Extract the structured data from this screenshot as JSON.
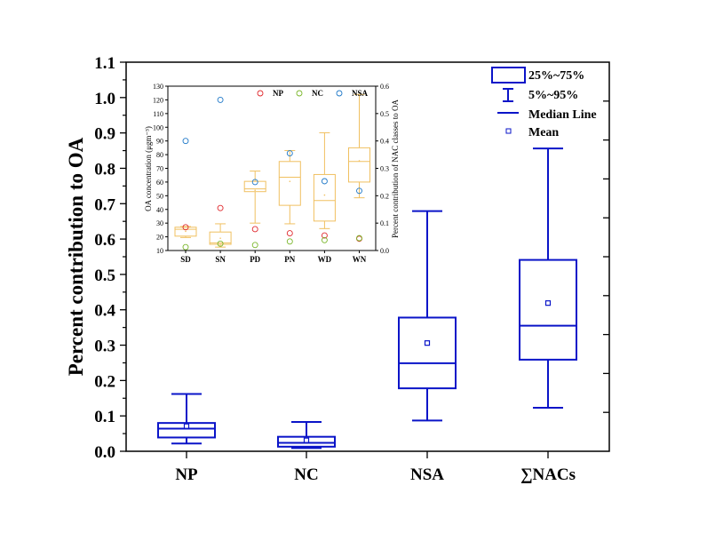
{
  "chart_data": [
    {
      "type": "box",
      "ylabel": "Percent contribution to OA",
      "ylim": [
        0,
        1.1
      ],
      "yticks": [
        "0.0",
        "0.1",
        "0.2",
        "0.3",
        "0.4",
        "0.5",
        "0.6",
        "0.7",
        "0.8",
        "0.9",
        "1.0",
        "1.1"
      ],
      "categories": [
        "NP",
        "NC",
        "NSA",
        "∑NACs"
      ],
      "series": [
        {
          "category": "NP",
          "p5": 0.022,
          "p25": 0.039,
          "median": 0.064,
          "p75": 0.08,
          "p95": 0.162,
          "mean": 0.071
        },
        {
          "category": "NC",
          "p5": 0.009,
          "p25": 0.013,
          "median": 0.024,
          "p75": 0.041,
          "p95": 0.083,
          "mean": 0.031
        },
        {
          "category": "NSA",
          "p5": 0.087,
          "p25": 0.178,
          "median": 0.249,
          "p75": 0.378,
          "p95": 0.679,
          "mean": 0.306
        },
        {
          "category": "∑NACs",
          "p5": 0.123,
          "p25": 0.259,
          "median": 0.355,
          "p75": 0.541,
          "p95": 0.856,
          "mean": 0.419
        }
      ],
      "legend": {
        "position": "top-right",
        "items": [
          "25%~75%",
          "5%~95%",
          "Median Line",
          "Mean"
        ]
      },
      "color": "#0a14c8"
    },
    {
      "type": "box+scatter",
      "inset": true,
      "ylabel": "OA concentration (μgm⁻³)",
      "ylabel_right": "Percent contribution of NAC classes to OA",
      "ylim": [
        10,
        130
      ],
      "ylim_right": [
        0,
        0.6
      ],
      "yticks": [
        "10",
        "20",
        "30",
        "40",
        "50",
        "60",
        "70",
        "80",
        "90",
        "100",
        "110",
        "120",
        "130"
      ],
      "yticks_right": [
        "0.0",
        "0.1",
        "0.2",
        "0.3",
        "0.4",
        "0.5",
        "0.6"
      ],
      "categories": [
        "SD",
        "SN",
        "PD",
        "PN",
        "WD",
        "WN"
      ],
      "boxes": [
        {
          "category": "SD",
          "p5": 19.5,
          "p25": 20.5,
          "median": 25.5,
          "p75": 27,
          "p95": 27.5,
          "mean": 24
        },
        {
          "category": "SN",
          "p5": 12.5,
          "p25": 14.5,
          "median": 15.5,
          "p75": 23.5,
          "p95": 29.5,
          "mean": 19
        },
        {
          "category": "PD",
          "p5": 30,
          "p25": 53,
          "median": 55,
          "p75": 60.5,
          "p95": 68,
          "mean": 54
        },
        {
          "category": "PN",
          "p5": 29.5,
          "p25": 43,
          "median": 63.5,
          "p75": 75,
          "p95": 83,
          "mean": 60.5
        },
        {
          "category": "WD",
          "p5": 26,
          "p25": 31.5,
          "median": 46.5,
          "p75": 65.5,
          "p95": 96,
          "mean": 50.5
        },
        {
          "category": "WN",
          "p5": 48.5,
          "p25": 60,
          "median": 75,
          "p75": 85,
          "p95": 124,
          "mean": 75.5
        }
      ],
      "box_color": "#f0c060",
      "scatter": [
        {
          "name": "NP",
          "color": "#e0282d",
          "values": [
            0.085,
            0.155,
            0.078,
            0.063,
            0.055,
            0.043
          ]
        },
        {
          "name": "NC",
          "color": "#7ab62a",
          "values": [
            0.0125,
            0.025,
            0.02,
            0.033,
            0.038,
            0.045
          ]
        },
        {
          "name": "NSA",
          "color": "#1e78c8",
          "values": [
            0.4,
            0.55,
            0.25,
            0.355,
            0.253,
            0.218
          ]
        }
      ],
      "legend": {
        "position": "top"
      }
    }
  ]
}
